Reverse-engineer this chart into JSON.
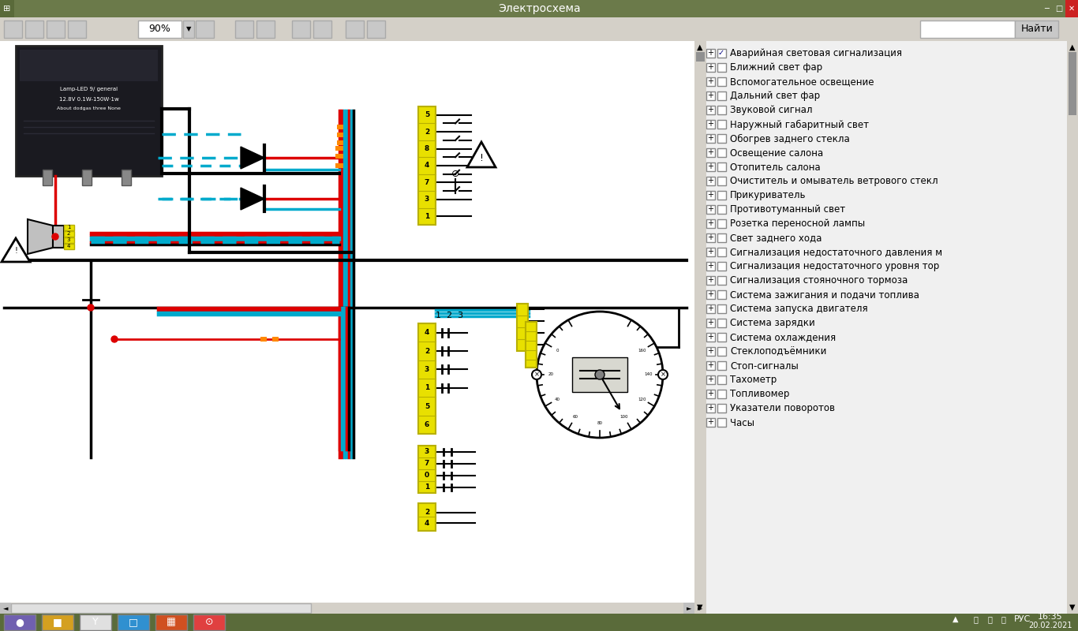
{
  "title": "Электросхема",
  "titlebar_bg": "#6b7a4a",
  "toolbar_bg": "#d4d0c8",
  "diagram_bg": "#ffffff",
  "right_panel_bg": "#f0f0f0",
  "statusbar_bg": "#5a6b3a",
  "wire_red": "#dd0000",
  "wire_blue": "#00aacc",
  "wire_black": "#000000",
  "wire_orange": "#ff8800",
  "connector_yellow": "#e8e000",
  "connector_yellow_dark": "#b8b000",
  "right_panel_items": [
    {
      "checked": true,
      "text": "Аварийная световая сигнализация"
    },
    {
      "checked": false,
      "text": "Ближний свет фар"
    },
    {
      "checked": false,
      "text": "Вспомогательное освещение"
    },
    {
      "checked": false,
      "text": "Дальний свет фар"
    },
    {
      "checked": false,
      "text": "Звуковой сигнал"
    },
    {
      "checked": false,
      "text": "Наружный габаритный свет"
    },
    {
      "checked": false,
      "text": "Обогрев заднего стекла"
    },
    {
      "checked": false,
      "text": "Освещение салона"
    },
    {
      "checked": false,
      "text": "Отопитель салона"
    },
    {
      "checked": false,
      "text": "Очиститель и омыватель ветрового стекл"
    },
    {
      "checked": false,
      "text": "Прикуриватель"
    },
    {
      "checked": false,
      "text": "Противотуманный свет"
    },
    {
      "checked": false,
      "text": "Розетка переносной лампы"
    },
    {
      "checked": false,
      "text": "Свет заднего хода"
    },
    {
      "checked": false,
      "text": "Сигнализация недостаточного давления м"
    },
    {
      "checked": false,
      "text": "Сигнализация недостаточного уровня тор"
    },
    {
      "checked": false,
      "text": "Сигнализация стояночного тормоза"
    },
    {
      "checked": false,
      "text": "Система зажигания и подачи топлива"
    },
    {
      "checked": false,
      "text": "Система запуска двигателя"
    },
    {
      "checked": false,
      "text": "Система зарядки"
    },
    {
      "checked": false,
      "text": "Система охлаждения"
    },
    {
      "checked": false,
      "text": "Стеклоподъёмники"
    },
    {
      "checked": false,
      "text": "Стоп-сигналы"
    },
    {
      "checked": false,
      "text": "Тахометр"
    },
    {
      "checked": false,
      "text": "Топливомер"
    },
    {
      "checked": false,
      "text": "Указатели поворотов"
    },
    {
      "checked": false,
      "text": "Часы"
    }
  ],
  "time_text": "16:35",
  "date_text": "20.02.2021"
}
